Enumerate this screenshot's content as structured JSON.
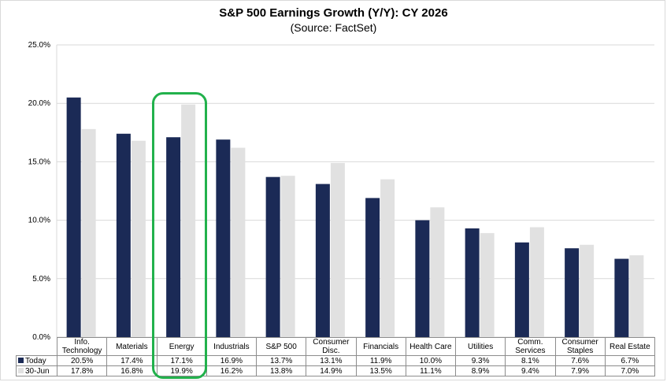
{
  "chart_data": {
    "type": "bar",
    "title": "S&P 500 Earnings Growth (Y/Y): CY 2026",
    "subtitle": "(Source: FactSet)",
    "categories": [
      "Info. Technology",
      "Materials",
      "Energy",
      "Industrials",
      "S&P 500",
      "Consumer Disc.",
      "Financials",
      "Health Care",
      "Utilities",
      "Comm. Services",
      "Consumer Staples",
      "Real Estate"
    ],
    "series": [
      {
        "name": "Today",
        "color": "#1b2a56",
        "values": [
          20.5,
          17.4,
          17.1,
          16.9,
          13.7,
          13.1,
          11.9,
          10.0,
          9.3,
          8.1,
          7.6,
          6.7
        ],
        "labels": [
          "20.5%",
          "17.4%",
          "17.1%",
          "16.9%",
          "13.7%",
          "13.1%",
          "11.9%",
          "10.0%",
          "9.3%",
          "8.1%",
          "7.6%",
          "6.7%"
        ]
      },
      {
        "name": "30-Jun",
        "color": "#e1e1e1",
        "values": [
          17.8,
          16.8,
          19.9,
          16.2,
          13.8,
          14.9,
          13.5,
          11.1,
          8.9,
          9.4,
          7.9,
          7.0
        ],
        "labels": [
          "17.8%",
          "16.8%",
          "19.9%",
          "16.2%",
          "13.8%",
          "14.9%",
          "13.5%",
          "11.1%",
          "8.9%",
          "9.4%",
          "7.9%",
          "7.0%"
        ]
      }
    ],
    "ylim": [
      0,
      25
    ],
    "yticks": [
      0,
      5,
      10,
      15,
      20,
      25
    ],
    "ytick_labels": [
      "0.0%",
      "5.0%",
      "10.0%",
      "15.0%",
      "20.0%",
      "25.0%"
    ],
    "grid": true,
    "legend": "data table rows",
    "highlight": "Energy"
  }
}
